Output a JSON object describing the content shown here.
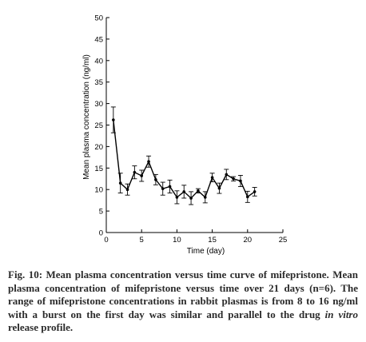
{
  "chart_data": {
    "type": "line",
    "title": "",
    "xlabel": "Time (day)",
    "ylabel": "Mean plasma concentration (ng/ml)",
    "xlim": [
      0,
      25
    ],
    "ylim": [
      0,
      50
    ],
    "x_ticks": [
      0,
      5,
      10,
      15,
      20,
      25
    ],
    "y_ticks": [
      0,
      5,
      10,
      15,
      20,
      25,
      30,
      35,
      40,
      45,
      50
    ],
    "grid": false,
    "legend": "none",
    "series": [
      {
        "x": [
          1,
          2,
          3,
          4,
          5,
          6,
          7,
          8,
          9,
          10,
          11,
          12,
          13,
          14,
          15,
          16,
          17,
          18,
          19,
          20,
          21
        ],
        "y": [
          26.2,
          11.5,
          10.0,
          14.0,
          13.2,
          16.5,
          12.3,
          10.2,
          10.7,
          8.2,
          9.5,
          8.0,
          9.7,
          8.2,
          12.8,
          10.3,
          13.5,
          12.5,
          12.0,
          8.3,
          9.5
        ],
        "error": [
          3.0,
          2.3,
          1.3,
          1.5,
          1.3,
          1.3,
          1.2,
          1.5,
          1.5,
          1.5,
          1.5,
          1.5,
          0.5,
          1.3,
          1.0,
          1.2,
          1.2,
          0.5,
          1.3,
          1.3,
          1.0
        ]
      }
    ]
  },
  "caption": {
    "label": "Fig. 10:",
    "title": " Mean plasma concentration versus time curve of mifepristone.",
    "body_before": " Mean plasma concentration of mifepristone versus time over 21 days (n=6). The range of mifepristone concentrations in rabbit plasmas is from 8 to 16 ng/ml with a burst on the first day was similar and parallel to the drug ",
    "body_italic": "in vitro",
    "body_after": " release profile."
  }
}
